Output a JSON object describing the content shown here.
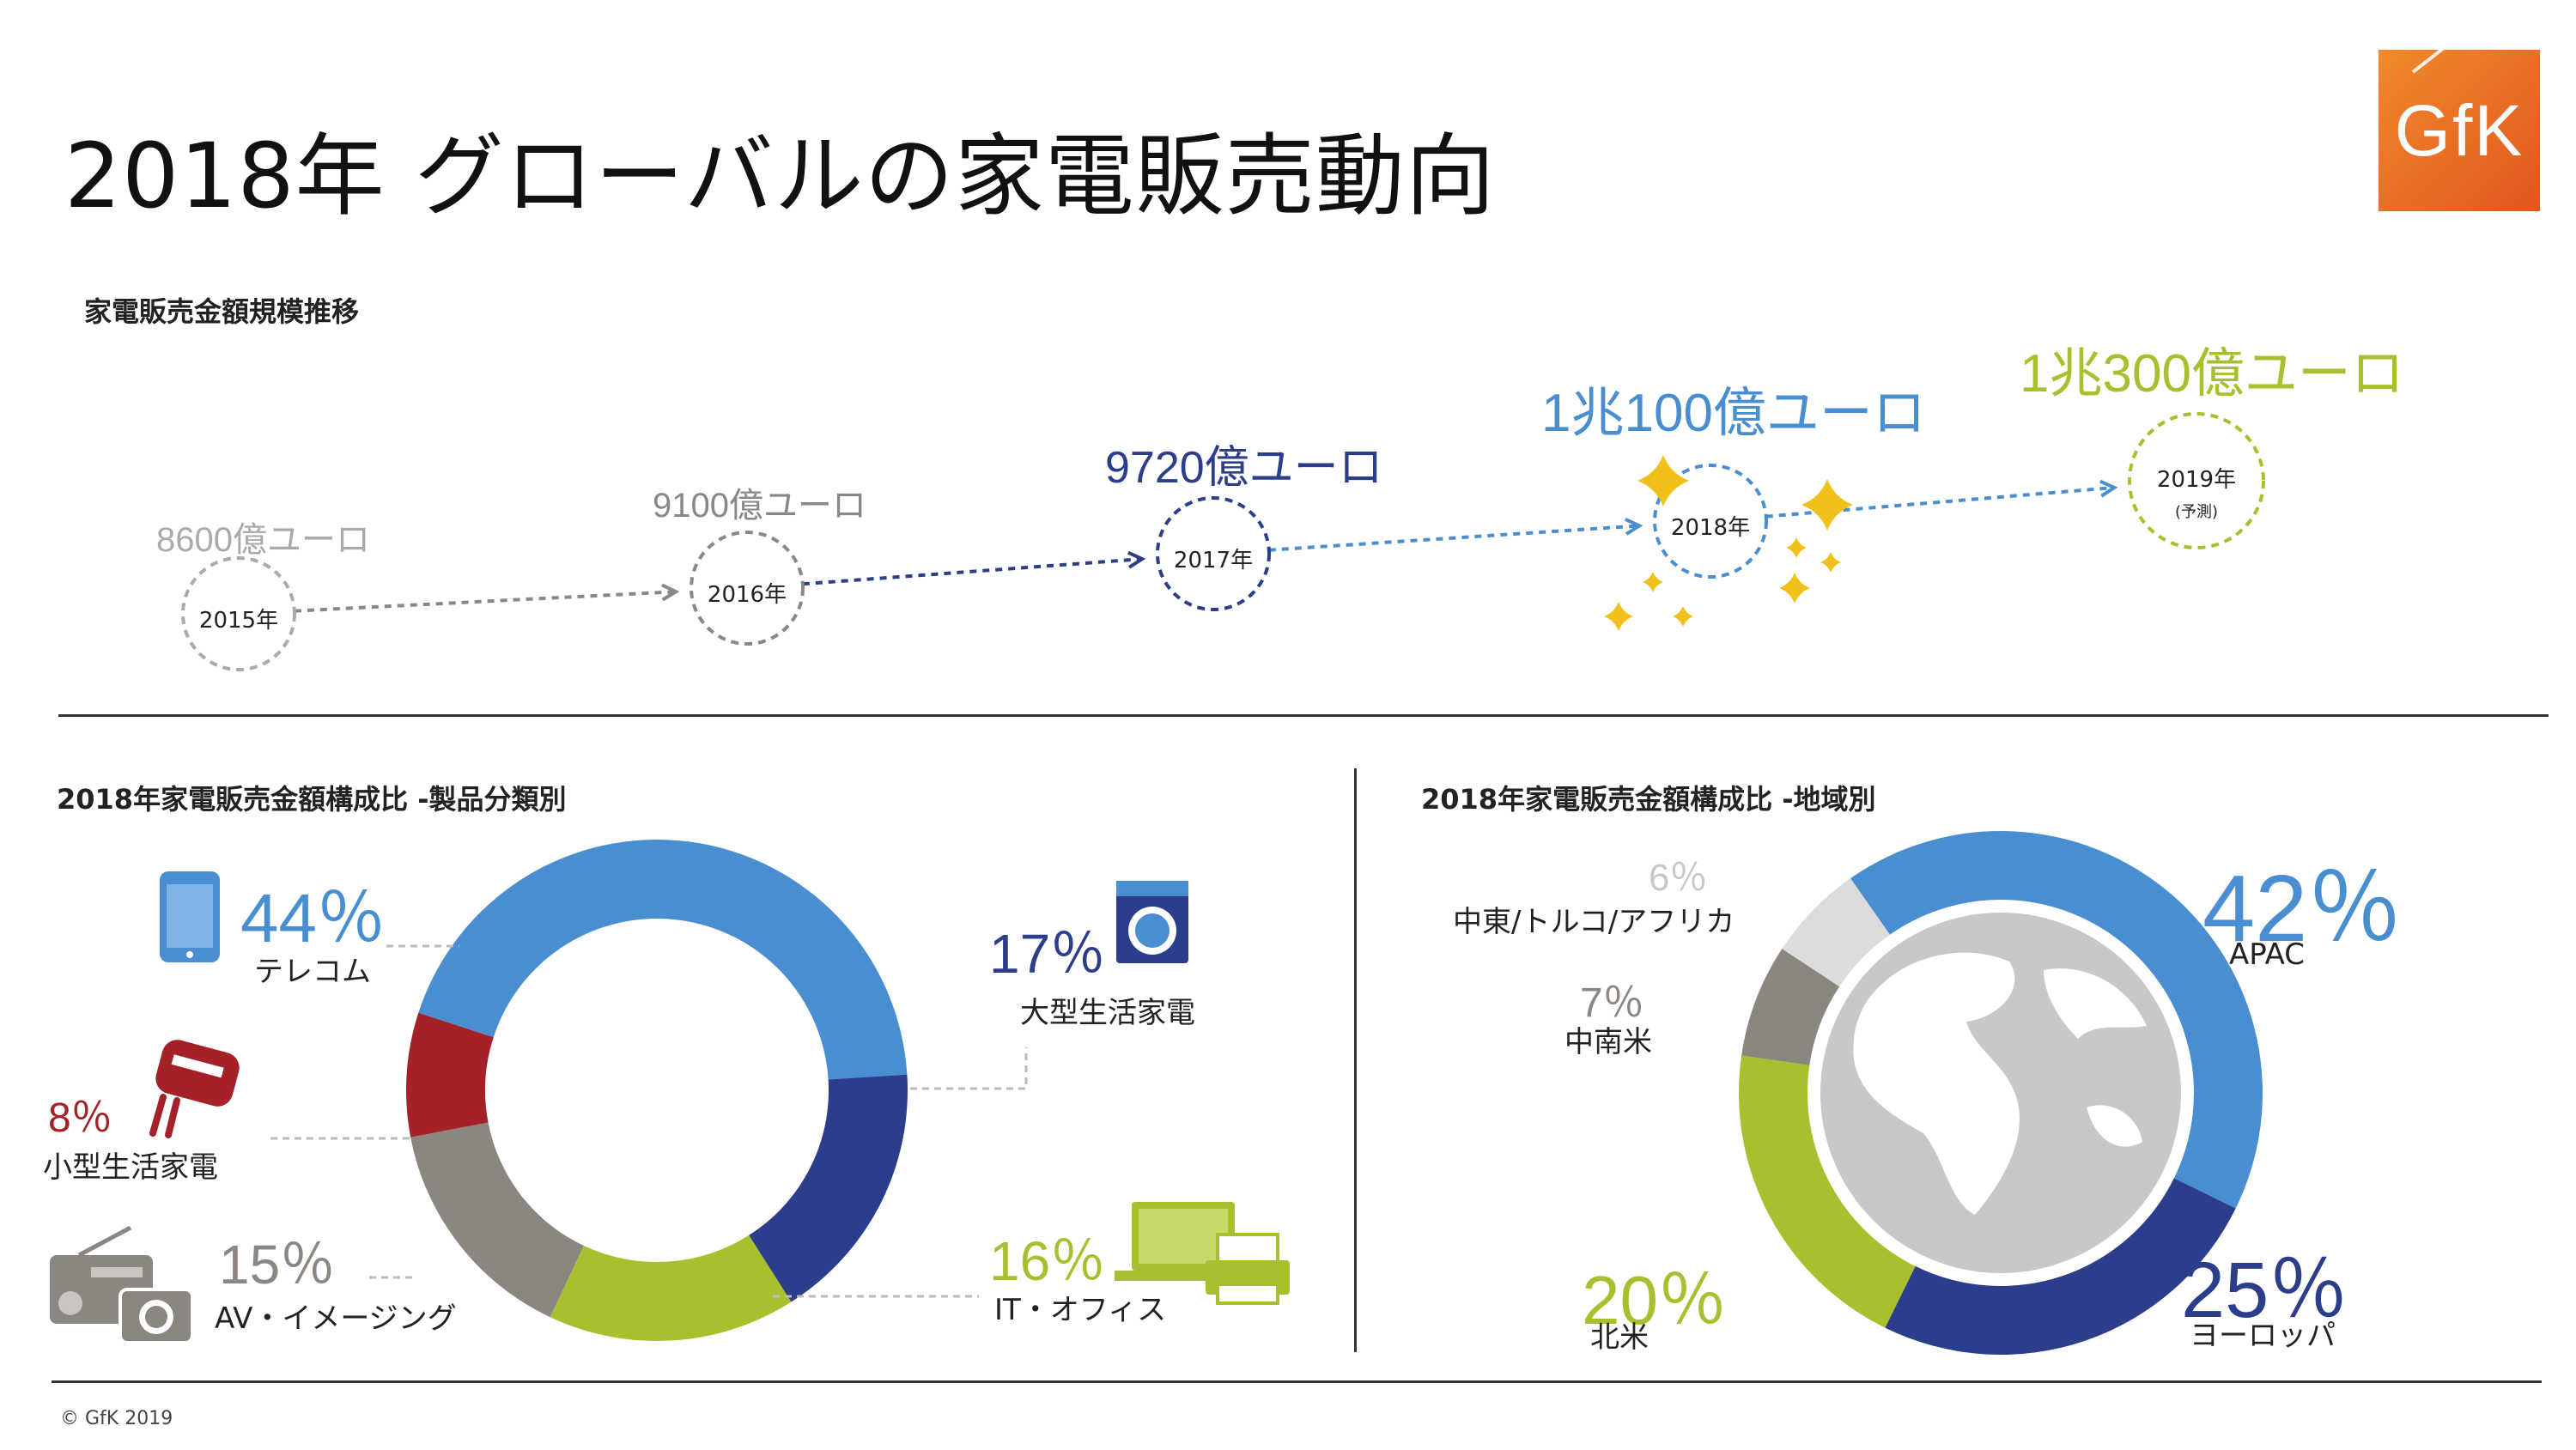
{
  "header": {
    "title": "2018年 グローバルの家電販売動向",
    "logo_text": "GfK"
  },
  "colors": {
    "telecom": "#4a8ed2",
    "major_appliances": "#2b3d8b",
    "it_office": "#a9bf2d",
    "av_imaging": "#8b8680",
    "small_appliances": "#a32127",
    "apac": "#4a8ed2",
    "europe": "#2b3d8b",
    "north_america": "#a9bf2d",
    "latam": "#8b8680",
    "mea": "#dcdcdc",
    "gold": "#f2c01b"
  },
  "timeline": {
    "section_title": "家電販売金額規模推移",
    "points": [
      {
        "year": "2015年",
        "sub": "",
        "value_label": "8600億ユーロ",
        "color": "#aaaaaa"
      },
      {
        "year": "2016年",
        "sub": "",
        "value_label": "9100億ユーロ",
        "color": "#888888"
      },
      {
        "year": "2017年",
        "sub": "",
        "value_label": "9720億ユーロ",
        "color": "#2b3d8b"
      },
      {
        "year": "2018年",
        "sub": "",
        "value_label": "1兆100億ユーロ",
        "color": "#4a8ed2"
      },
      {
        "year": "2019年",
        "sub": "(予測)",
        "value_label": "1兆300億ユーロ",
        "color": "#a9bf2d"
      }
    ]
  },
  "product_section": {
    "title": "2018年家電販売金額構成比 -製品分類別"
  },
  "region_section": {
    "title": "2018年家電販売金額構成比 -地域別"
  },
  "chart_data": [
    {
      "type": "line",
      "title": "家電販売金額規模推移",
      "categories": [
        "2015年",
        "2016年",
        "2017年",
        "2018年",
        "2019年"
      ],
      "values": [
        8600,
        9100,
        9720,
        10100,
        10300
      ],
      "unit": "億ユーロ"
    },
    {
      "type": "pie",
      "title": "2018年家電販売金額構成比 -製品分類別",
      "slices": [
        {
          "label": "テレコム",
          "pct_label": "44％",
          "value": 44,
          "color": "#4a8ed2",
          "icon": "smartphone-icon"
        },
        {
          "label": "大型生活家電",
          "pct_label": "17％",
          "value": 17,
          "color": "#2b3d8b",
          "icon": "washing-machine-icon"
        },
        {
          "label": "IT・オフィス",
          "pct_label": "16％",
          "value": 16,
          "color": "#a9bf2d",
          "icon": "laptop-printer-icon"
        },
        {
          "label": "AV・イメージング",
          "pct_label": "15％",
          "value": 15,
          "color": "#8b8680",
          "icon": "radio-camera-icon"
        },
        {
          "label": "小型生活家電",
          "pct_label": "8％",
          "value": 8,
          "color": "#a32127",
          "icon": "hand-mixer-icon"
        }
      ]
    },
    {
      "type": "pie",
      "title": "2018年家電販売金額構成比 -地域別",
      "slices": [
        {
          "label": "APAC",
          "pct_label": "42％",
          "value": 42,
          "color": "#4a8ed2"
        },
        {
          "label": "ヨーロッパ",
          "pct_label": "25％",
          "value": 25,
          "color": "#2b3d8b"
        },
        {
          "label": "北米",
          "pct_label": "20％",
          "value": 20,
          "color": "#a9bf2d"
        },
        {
          "label": "中南米",
          "pct_label": "7％",
          "value": 7,
          "color": "#8b8680"
        },
        {
          "label": "中東/トルコ/アフリカ",
          "pct_label": "6％",
          "value": 6,
          "color": "#dcdcdc"
        }
      ]
    }
  ],
  "footer": {
    "copyright": "© GfK 2019"
  }
}
